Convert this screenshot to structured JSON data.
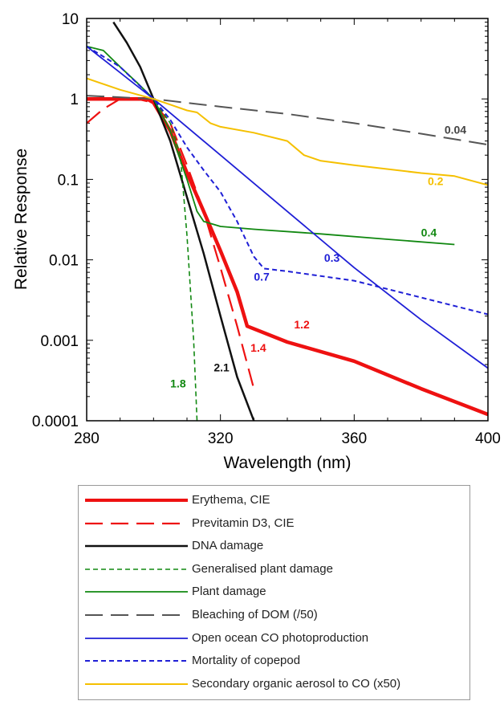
{
  "chart_data": {
    "type": "line",
    "xlabel": "Wavelength (nm)",
    "ylabel": "Relative Response",
    "xlim": [
      280,
      400
    ],
    "ylim": [
      0.0001,
      10
    ],
    "yscale": "log",
    "x_ticks": [
      280,
      320,
      360,
      400
    ],
    "y_ticks": [
      {
        "value": 10,
        "label": "10"
      },
      {
        "value": 1,
        "label": "1"
      },
      {
        "value": 0.1,
        "label": "0.1"
      },
      {
        "value": 0.01,
        "label": "0.01"
      },
      {
        "value": 0.001,
        "label": "0.001"
      },
      {
        "value": 0.0001,
        "label": "0.0001"
      }
    ],
    "legend_position": "below",
    "series": [
      {
        "name": "Erythema, CIE",
        "color": "#ee1111",
        "dash": "solid",
        "width": 4.5,
        "x": [
          280,
          298,
          300,
          305,
          310,
          315,
          320,
          325,
          328,
          340,
          360,
          380,
          400
        ],
        "y": [
          1,
          1,
          0.9,
          0.4,
          0.12,
          0.04,
          0.013,
          0.004,
          0.0015,
          0.00095,
          0.00055,
          0.00025,
          0.00012
        ],
        "label": "1.2",
        "label_x": 342,
        "label_y": 0.0014
      },
      {
        "name": "Previtamin D3, CIE",
        "color": "#ee1111",
        "dash": "long-dash",
        "width": 2.2,
        "x": [
          280,
          285,
          290,
          295,
          300,
          305,
          310,
          315,
          320,
          325,
          330
        ],
        "y": [
          0.5,
          0.75,
          1,
          1,
          0.9,
          0.5,
          0.15,
          0.04,
          0.008,
          0.0015,
          0.00025
        ],
        "label": "1.4",
        "label_x": 329,
        "label_y": 0.00072
      },
      {
        "name": "DNA damage",
        "color": "#111111",
        "dash": "solid",
        "width": 2.5,
        "x": [
          288,
          292,
          296,
          300,
          305,
          310,
          315,
          320,
          325,
          330
        ],
        "y": [
          9,
          5,
          2.5,
          1,
          0.3,
          0.06,
          0.012,
          0.002,
          0.00035,
          0.0001
        ],
        "label": "2.1",
        "label_x": 318,
        "label_y": 0.00041
      },
      {
        "name": "Generalised plant damage",
        "color": "#118811",
        "dash": "short-dash",
        "width": 1.6,
        "x": [
          280,
          290,
          300,
          305,
          308,
          310,
          312,
          313
        ],
        "y": [
          4.5,
          2.5,
          1,
          0.5,
          0.2,
          0.02,
          0.001,
          0.0001
        ],
        "label": "1.8",
        "label_x": 305,
        "label_y": 0.00026
      },
      {
        "name": "Plant damage",
        "color": "#118811",
        "dash": "solid",
        "width": 1.8,
        "x": [
          280,
          285,
          290,
          295,
          300,
          305,
          310,
          313,
          315,
          320,
          330,
          350,
          370,
          390
        ],
        "y": [
          4.5,
          4,
          2.5,
          1.6,
          1,
          0.4,
          0.1,
          0.04,
          0.03,
          0.026,
          0.024,
          0.021,
          0.018,
          0.0155
        ],
        "label": "0.4",
        "label_x": 380,
        "label_y": 0.0195
      },
      {
        "name": "Bleaching of DOM (/50)",
        "color": "#555555",
        "dash": "long-dash",
        "width": 2,
        "x": [
          280,
          300,
          320,
          340,
          360,
          380,
          400
        ],
        "y": [
          1.1,
          1,
          0.8,
          0.65,
          0.5,
          0.37,
          0.27
        ],
        "label": "0.04",
        "label_x": 387,
        "label_y": 0.37
      },
      {
        "name": "Open ocean CO photoproduction",
        "color": "#1f1fd6",
        "dash": "solid",
        "width": 1.8,
        "x": [
          280,
          300,
          320,
          340,
          360,
          380,
          400
        ],
        "y": [
          4.5,
          1,
          0.2,
          0.04,
          0.008,
          0.0018,
          0.00045
        ],
        "label": "0.3",
        "label_x": 351,
        "label_y": 0.0095
      },
      {
        "name": "Mortality of copepod",
        "color": "#1f1fd6",
        "dash": "short-dash",
        "width": 2,
        "x": [
          280,
          290,
          300,
          305,
          310,
          315,
          320,
          325,
          330,
          333,
          340,
          360,
          380,
          400
        ],
        "y": [
          4.5,
          2.5,
          1,
          0.55,
          0.25,
          0.13,
          0.07,
          0.03,
          0.011,
          0.0078,
          0.0072,
          0.0055,
          0.0034,
          0.0021
        ],
        "label": "0.7",
        "label_x": 330,
        "label_y": 0.0055
      },
      {
        "name": "Secondary organic aerosol to CO (x50)",
        "color": "#f5c000",
        "dash": "solid",
        "width": 2,
        "x": [
          280,
          290,
          300,
          305,
          310,
          313,
          317,
          320,
          330,
          340,
          345,
          350,
          360,
          380,
          390,
          400
        ],
        "y": [
          1.8,
          1.3,
          1,
          0.85,
          0.72,
          0.68,
          0.5,
          0.45,
          0.38,
          0.3,
          0.2,
          0.17,
          0.15,
          0.12,
          0.11,
          0.085
        ],
        "label": "0.2",
        "label_x": 382,
        "label_y": 0.085
      }
    ]
  }
}
